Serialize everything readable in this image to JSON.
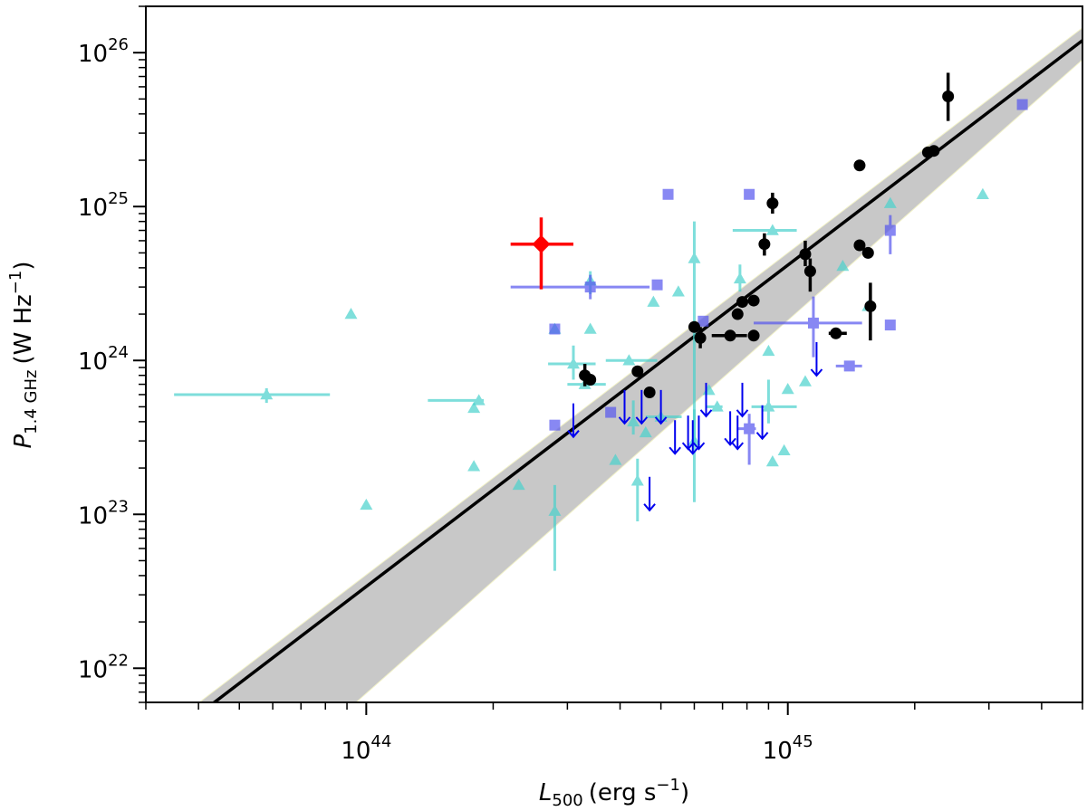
{
  "chart_data": {
    "type": "scatter",
    "title": "",
    "xlabel": {
      "main": "L",
      "sub": "500",
      "units": "(erg s",
      "sup": "−1",
      "close": ")"
    },
    "ylabel": {
      "main": "P",
      "sub": "1.4 GHz",
      "units": "(W Hz",
      "sup": "−1",
      "close": ")"
    },
    "xscale": "log",
    "yscale": "log",
    "xlim": [
      3e+43,
      5e+45
    ],
    "ylim": [
      6e+21,
      2e+26
    ],
    "x_ticks": [
      {
        "value": 1e+44,
        "base": "10",
        "exp": "44"
      },
      {
        "value": 1e+45,
        "base": "10",
        "exp": "45"
      }
    ],
    "y_ticks": [
      {
        "value": 1e+22,
        "base": "10",
        "exp": "22"
      },
      {
        "value": 1e+23,
        "base": "10",
        "exp": "23"
      },
      {
        "value": 1e+24,
        "base": "10",
        "exp": "24"
      },
      {
        "value": 1e+25,
        "base": "10",
        "exp": "25"
      },
      {
        "value": 1e+26,
        "base": "10",
        "exp": "26"
      }
    ],
    "colors": {
      "black": "#000000",
      "cyan": "#48d1cc",
      "blue": "#5555ee",
      "red": "#ff0000",
      "arrow": "#0000ee",
      "band": "#c8c8c8"
    },
    "fit_line": {
      "points": [
        [
          3.8e+43,
          4.5e+21
        ],
        [
          5e+45,
          1.2e+26
        ]
      ],
      "band_upper": [
        [
          3.5e+43,
          4.5e+21
        ],
        [
          5e+45,
          1.45e+26
        ]
      ],
      "band_lower": [
        [
          8.4e+43,
          4.5e+21
        ],
        [
          5e+45,
          9e+25
        ]
      ]
    },
    "series": [
      {
        "marker": "circle",
        "color": "black",
        "points": [
          {
            "x": 3.3e+44,
            "y": 8e+23,
            "ylo": 6.8e+23,
            "yhi": 9.5e+23
          },
          {
            "x": 3.4e+44,
            "y": 7.5e+23
          },
          {
            "x": 4.4e+44,
            "y": 8.5e+23
          },
          {
            "x": 4.7e+44,
            "y": 6.2e+23
          },
          {
            "x": 6e+44,
            "y": 1.65e+24
          },
          {
            "x": 6.2e+44,
            "y": 1.4e+24,
            "ylo": 1.2e+24,
            "yhi": 1.65e+24
          },
          {
            "x": 7.3e+44,
            "y": 1.45e+24,
            "xlo": 6.6e+44,
            "xhi": 8e+44
          },
          {
            "x": 7.6e+44,
            "y": 2e+24
          },
          {
            "x": 7.8e+44,
            "y": 2.4e+24
          },
          {
            "x": 8.3e+44,
            "y": 1.45e+24
          },
          {
            "x": 8.3e+44,
            "y": 2.45e+24
          },
          {
            "x": 8.8e+44,
            "y": 5.7e+24,
            "ylo": 4.8e+24,
            "yhi": 6.7e+24
          },
          {
            "x": 9.2e+44,
            "y": 1.05e+25,
            "ylo": 9e+24,
            "yhi": 1.23e+25
          },
          {
            "x": 1.1e+45,
            "y": 4.9e+24,
            "ylo": 4.1e+24,
            "yhi": 6e+24
          },
          {
            "x": 1.13e+45,
            "y": 3.8e+24,
            "ylo": 2.8e+24,
            "yhi": 4.6e+24
          },
          {
            "x": 1.3e+45,
            "y": 1.5e+24,
            "xlo": 1.25e+45,
            "xhi": 1.38e+45
          },
          {
            "x": 1.48e+45,
            "y": 1.85e+25
          },
          {
            "x": 1.48e+45,
            "y": 5.6e+24
          },
          {
            "x": 1.55e+45,
            "y": 5e+24
          },
          {
            "x": 1.57e+45,
            "y": 2.25e+24,
            "ylo": 1.35e+24,
            "yhi": 3.2e+24
          },
          {
            "x": 2.15e+45,
            "y": 2.25e+25
          },
          {
            "x": 2.22e+45,
            "y": 2.3e+25
          },
          {
            "x": 2.4e+45,
            "y": 5.2e+25,
            "ylo": 3.6e+25,
            "yhi": 7.4e+25
          }
        ]
      },
      {
        "marker": "triangle",
        "color": "cyan",
        "points": [
          {
            "x": 5.8e+43,
            "y": 6e+23,
            "xlo": 3.5e+43,
            "xhi": 8.2e+43,
            "ylo": 5.3e+23,
            "yhi": 6.6e+23
          },
          {
            "x": 9.2e+43,
            "y": 2e+24
          },
          {
            "x": 1e+44,
            "y": 1.15e+23
          },
          {
            "x": 1.85e+44,
            "y": 5.5e+23,
            "xlo": 1.4e+44,
            "xhi": 1.9e+44
          },
          {
            "x": 1.8e+44,
            "y": 4.9e+23
          },
          {
            "x": 1.8e+44,
            "y": 2.05e+23
          },
          {
            "x": 2.3e+44,
            "y": 1.55e+23
          },
          {
            "x": 2.8e+44,
            "y": 1.05e+23,
            "ylo": 4.3e+22,
            "yhi": 1.55e+23
          },
          {
            "x": 2.8e+44,
            "y": 1.6e+24
          },
          {
            "x": 3.1e+44,
            "y": 9.5e+23,
            "xlo": 2.7e+44,
            "xhi": 3.5e+44,
            "ylo": 7.5e+23,
            "yhi": 1.25e+24
          },
          {
            "x": 3.3e+44,
            "y": 7e+23,
            "xlo": 3e+44,
            "xhi": 3.7e+44
          },
          {
            "x": 3.4e+44,
            "y": 1.6e+24
          },
          {
            "x": 3.4e+44,
            "y": 3.3e+24,
            "ylo": 2.7e+24,
            "yhi": 3.8e+24
          },
          {
            "x": 3.9e+44,
            "y": 2.25e+23
          },
          {
            "x": 4.2e+44,
            "y": 1e+24,
            "xlo": 3.7e+44,
            "xhi": 4.9e+44
          },
          {
            "x": 4.3e+44,
            "y": 4e+23,
            "ylo": 3.3e+23,
            "yhi": 5.5e+23
          },
          {
            "x": 4.4e+44,
            "y": 1.65e+23,
            "ylo": 9e+22,
            "yhi": 2.3e+23
          },
          {
            "x": 4.6e+44,
            "y": 3.4e+23
          },
          {
            "x": 4.8e+44,
            "y": 2.4e+24
          },
          {
            "x": 5e+44,
            "y": 4.3e+23,
            "xlo": 4.6e+44,
            "xhi": 5.6e+44
          },
          {
            "x": 5.5e+44,
            "y": 2.8e+24
          },
          {
            "x": 6e+44,
            "y": 4.6e+24,
            "ylo": 2.8e+23,
            "yhi": 8e+24
          },
          {
            "x": 6e+44,
            "y": 3e+23,
            "ylo": 1.2e+23,
            "yhi": 4.8e+23
          },
          {
            "x": 6.5e+44,
            "y": 6.4e+23
          },
          {
            "x": 6.8e+44,
            "y": 5e+23,
            "xlo": 6.4e+44,
            "xhi": 7e+44
          },
          {
            "x": 7.7e+44,
            "y": 3.4e+24,
            "ylo": 2.8e+24,
            "yhi": 4.2e+24
          },
          {
            "x": 9e+44,
            "y": 5e+23,
            "xlo": 8.2e+44,
            "xhi": 1.05e+45,
            "ylo": 3.9e+23,
            "yhi": 7.5e+23
          },
          {
            "x": 9e+44,
            "y": 1.15e+24
          },
          {
            "x": 9.2e+44,
            "y": 2.2e+23
          },
          {
            "x": 9.8e+44,
            "y": 2.6e+23
          },
          {
            "x": 1e+45,
            "y": 6.5e+23
          },
          {
            "x": 9.2e+44,
            "y": 7e+24,
            "xlo": 7.4e+44,
            "xhi": 1.05e+45
          },
          {
            "x": 1.1e+45,
            "y": 7.3e+23
          },
          {
            "x": 1.35e+45,
            "y": 4.1e+24
          },
          {
            "x": 1.55e+45,
            "y": 2.25e+24
          },
          {
            "x": 1.75e+45,
            "y": 1.05e+25
          },
          {
            "x": 2.9e+45,
            "y": 1.2e+25
          }
        ]
      },
      {
        "marker": "square",
        "color": "blue",
        "points": [
          {
            "x": 2.8e+44,
            "y": 1.6e+24
          },
          {
            "x": 2.8e+44,
            "y": 3.8e+23
          },
          {
            "x": 3.4e+44,
            "y": 3e+24,
            "xlo": 2.2e+44,
            "xhi": 4.7e+44,
            "ylo": 2.5e+24,
            "yhi": 3.6e+24
          },
          {
            "x": 3.8e+44,
            "y": 4.6e+23
          },
          {
            "x": 4.9e+44,
            "y": 3.1e+24
          },
          {
            "x": 5.2e+44,
            "y": 1.2e+25
          },
          {
            "x": 6.3e+44,
            "y": 1.8e+24
          },
          {
            "x": 8.1e+44,
            "y": 1.2e+25
          },
          {
            "x": 8.1e+44,
            "y": 3.6e+23,
            "xlo": 7.6e+44,
            "xhi": 8.4e+44,
            "ylo": 2.1e+23,
            "yhi": 4.5e+23
          },
          {
            "x": 1.15e+45,
            "y": 1.75e+24,
            "xlo": 8.3e+44,
            "xhi": 1.5e+45,
            "ylo": 1.05e+24,
            "yhi": 2.6e+24
          },
          {
            "x": 1.4e+45,
            "y": 9.2e+23,
            "xlo": 1.3e+45,
            "xhi": 1.5e+45
          },
          {
            "x": 1.75e+45,
            "y": 7e+24,
            "ylo": 4.9e+24,
            "yhi": 8.8e+24
          },
          {
            "x": 1.75e+45,
            "y": 1.7e+24
          },
          {
            "x": 3.6e+45,
            "y": 4.6e+25
          }
        ]
      },
      {
        "marker": "diamond",
        "color": "red",
        "points": [
          {
            "x": 2.6e+44,
            "y": 5.7e+24,
            "xlo": 2.2e+44,
            "xhi": 3.1e+44,
            "ylo": 2.9e+24,
            "yhi": 8.5e+24
          }
        ]
      }
    ],
    "upper_limits": [
      {
        "x": 3.1e+44,
        "y": 3.6e+23
      },
      {
        "x": 4.1e+44,
        "y": 4.4e+23
      },
      {
        "x": 4.5e+44,
        "y": 4.4e+23
      },
      {
        "x": 4.7e+44,
        "y": 1.2e+23
      },
      {
        "x": 5e+44,
        "y": 4.4e+23
      },
      {
        "x": 5.4e+44,
        "y": 2.8e+23
      },
      {
        "x": 5.8e+44,
        "y": 3e+23
      },
      {
        "x": 5.95e+44,
        "y": 2.8e+23
      },
      {
        "x": 6.15e+44,
        "y": 3e+23
      },
      {
        "x": 6.4e+44,
        "y": 4.9e+23
      },
      {
        "x": 7.3e+44,
        "y": 3.2e+23
      },
      {
        "x": 7.6e+44,
        "y": 3e+23
      },
      {
        "x": 7.8e+44,
        "y": 4.9e+23
      },
      {
        "x": 8.7e+44,
        "y": 3.5e+23
      },
      {
        "x": 1.17e+45,
        "y": 9e+23
      }
    ]
  }
}
